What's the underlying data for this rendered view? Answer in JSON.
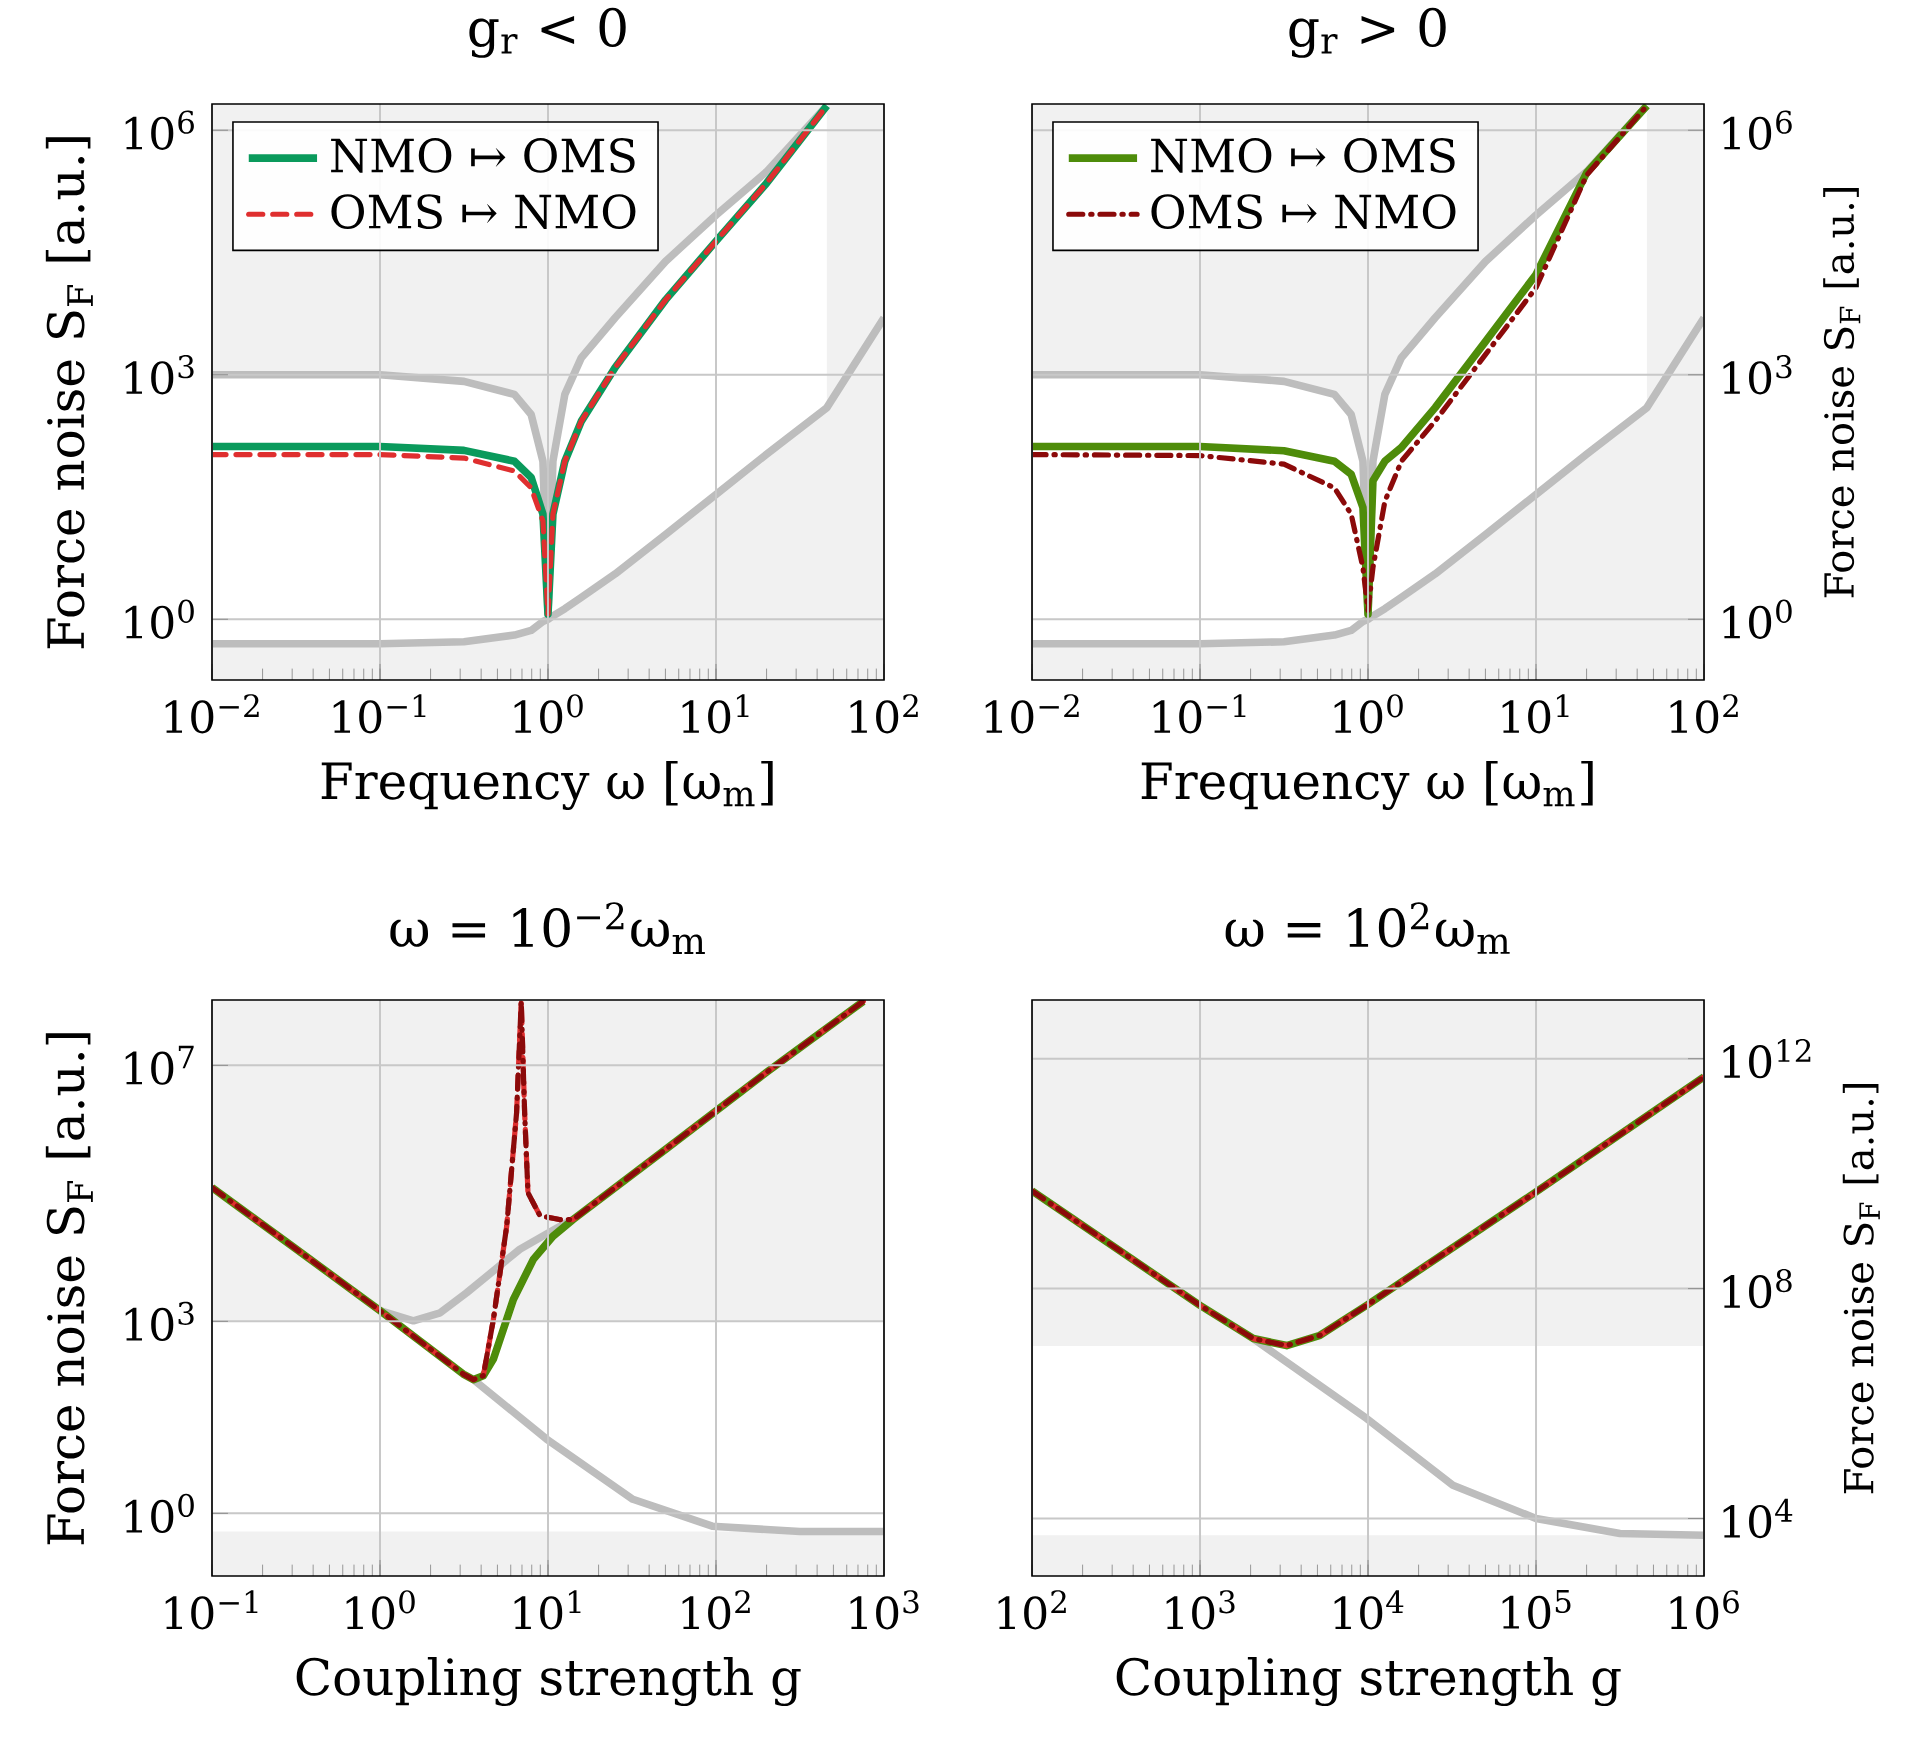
{
  "chart_data": [
    {
      "type": "line",
      "title": "g$_{r}$ < 0",
      "xlabel": "Frequency ω [ω$_{m}$]",
      "ylabel": "Force noise S$_{F}$ [a.u.]",
      "log": "xy",
      "grid": true,
      "legend": "top left",
      "xlim": [
        0.01,
        100
      ],
      "ylim": [
        0.18,
        2100000
      ],
      "xticks": [
        {
          "value": 0.01,
          "label": "10$^{−2}$"
        },
        {
          "value": 0.1,
          "label": "10$^{−1}$"
        },
        {
          "value": 1,
          "label": "10$^{0}$"
        },
        {
          "value": 10,
          "label": "10$^{1}$"
        },
        {
          "value": 100,
          "label": "10$^{2}$"
        }
      ],
      "yticks": [
        {
          "value": 1,
          "label": "10$^{0}$"
        },
        {
          "value": 1000,
          "label": "10$^{3}$"
        },
        {
          "value": 1000000,
          "label": "10$^{6}$"
        }
      ],
      "bands": [
        {
          "axis": "y",
          "from": 0.18,
          "to": 2100000,
          "color": "#f1f1f1"
        }
      ],
      "series": [
        {
          "color": "#bdbdbd",
          "x": [
            0.01,
            0.1,
            0.316,
            0.631,
            0.794,
            0.933,
            1,
            1.07,
            1.26,
            1.58,
            2.51,
            5.01,
            10,
            20,
            45.7
          ],
          "values": [
            1000,
            1000,
            830,
            575,
            325,
            87,
            1.16,
            87,
            575,
            1620,
            5000,
            24600,
            91000,
            310000,
            2000000
          ],
          "upper": [
            1000,
            1000,
            830,
            575,
            325,
            87,
            1.16,
            87,
            575,
            1620,
            5000,
            24600,
            91000,
            310000,
            2000000
          ],
          "lower": [
            0.5,
            0.5,
            0.53,
            0.64,
            0.73,
            0.94,
            1,
            1.1,
            1.35,
            1.86,
            3.6,
            11,
            34,
            106,
            395
          ]
        },
        {
          "color": "#bdbdbd",
          "x": [
            0.01,
            0.1,
            0.316,
            0.631,
            0.794,
            0.933,
            1,
            1.07,
            1.26,
            1.58,
            2.51,
            5.01,
            10,
            20,
            45.7,
            100
          ],
          "values": [
            0.5,
            0.5,
            0.53,
            0.64,
            0.73,
            0.94,
            1,
            1.1,
            1.35,
            1.86,
            3.6,
            11,
            34,
            106,
            395,
            5000
          ]
        },
        {
          "name": "NMO ↦ OMS",
          "color": "#0a9a5c",
          "line_style": "solid",
          "x": [
            0.01,
            0.1,
            0.316,
            0.631,
            0.794,
            0.933,
            1,
            1.07,
            1.26,
            1.58,
            2.51,
            5.01,
            10,
            20,
            45.7
          ],
          "values": [
            132,
            132,
            118,
            87,
            55,
            19.5,
            1.16,
            19.5,
            87,
            270,
            1230,
            8300,
            43600,
            224000,
            2000000
          ]
        },
        {
          "name": "OMS ↦ NMO",
          "color": "#df2f2f",
          "line_style": "dashed",
          "x": [
            0.01,
            0.1,
            0.316,
            0.631,
            0.794,
            0.933,
            1,
            1.07,
            1.26,
            1.58,
            2.51,
            5.01,
            10,
            20,
            45.7
          ],
          "values": [
            105,
            105,
            95,
            66,
            41,
            16,
            1.16,
            19.5,
            87,
            270,
            1230,
            8300,
            43600,
            224000,
            2000000
          ]
        }
      ]
    },
    {
      "type": "line",
      "title": "g$_{r}$ > 0",
      "xlabel": "Frequency ω [ω$_{m}$]",
      "ylabel": "Force noise S$_{F}$ [a.u.]",
      "log": "xy",
      "grid": true,
      "legend": "top left",
      "xlim": [
        0.01,
        100
      ],
      "ylim": [
        0.18,
        2100000
      ],
      "xticks": [
        {
          "value": 0.01,
          "label": "10$^{−2}$"
        },
        {
          "value": 0.1,
          "label": "10$^{−1}$"
        },
        {
          "value": 1,
          "label": "10$^{0}$"
        },
        {
          "value": 10,
          "label": "10$^{1}$"
        },
        {
          "value": 100,
          "label": "10$^{2}$"
        }
      ],
      "yticks": [
        {
          "value": 1,
          "label": "10$^{0}$"
        },
        {
          "value": 1000,
          "label": "10$^{3}$"
        },
        {
          "value": 1000000,
          "label": "10$^{6}$"
        }
      ],
      "bands": [
        {
          "axis": "y",
          "from": 0.18,
          "to": 2100000,
          "color": "#f1f1f1"
        }
      ],
      "series": [
        {
          "color": "#bdbdbd",
          "x": [
            0.01,
            0.1,
            0.316,
            0.631,
            0.794,
            0.933,
            1,
            1.07,
            1.26,
            1.58,
            2.51,
            5.01,
            10,
            20,
            45.7
          ],
          "values": [
            1000,
            1000,
            830,
            575,
            325,
            87,
            1.16,
            87,
            575,
            1620,
            5000,
            24600,
            91000,
            310000,
            2000000
          ],
          "upper": [
            1000,
            1000,
            830,
            575,
            325,
            87,
            1.16,
            87,
            575,
            1620,
            5000,
            24600,
            91000,
            310000,
            2000000
          ],
          "lower": [
            0.5,
            0.5,
            0.53,
            0.64,
            0.73,
            0.94,
            1,
            1.1,
            1.35,
            1.86,
            3.6,
            11,
            34,
            106,
            395
          ]
        },
        {
          "color": "#bdbdbd",
          "x": [
            0.01,
            0.1,
            0.316,
            0.631,
            0.794,
            0.933,
            1,
            1.07,
            1.26,
            1.58,
            2.51,
            5.01,
            10,
            20,
            45.7,
            100
          ],
          "values": [
            0.5,
            0.5,
            0.53,
            0.64,
            0.73,
            0.94,
            1,
            1.1,
            1.35,
            1.86,
            3.6,
            11,
            34,
            106,
            395,
            5000
          ]
        },
        {
          "name": "NMO ↦ OMS",
          "color": "#4e8c0a",
          "line_style": "solid",
          "x": [
            0.01,
            0.1,
            0.316,
            0.631,
            0.794,
            0.933,
            1,
            1.07,
            1.26,
            1.58,
            2.51,
            5.01,
            10,
            20,
            45.7
          ],
          "values": [
            132,
            132,
            117,
            87,
            60,
            23.5,
            1.16,
            50,
            87,
            128,
            395,
            2570,
            17000,
            300000,
            2000000
          ]
        },
        {
          "name": "OMS ↦ NMO",
          "color": "#8b0a0a",
          "line_style": "dashdotted",
          "x": [
            0.01,
            0.1,
            0.316,
            0.631,
            0.794,
            0.933,
            1,
            1.07,
            1.26,
            1.58,
            2.51,
            5.01,
            10,
            20,
            45.7
          ],
          "values": [
            105,
            102,
            80,
            41,
            19.5,
            4.3,
            1.28,
            4.3,
            28,
            87,
            270,
            1780,
            11700,
            280000,
            2000000
          ]
        }
      ]
    },
    {
      "type": "line",
      "title": "ω = 10$^{−2}$ω$_{m}$",
      "xlabel": "Coupling strength g",
      "ylabel": "Force noise S$_{F}$ [a.u.]",
      "log": "xy",
      "grid": true,
      "xlim": [
        0.1,
        1000
      ],
      "ylim": [
        0.105,
        105000000
      ],
      "xticks": [
        {
          "value": 0.1,
          "label": "10$^{−1}$"
        },
        {
          "value": 1,
          "label": "10$^{0}$"
        },
        {
          "value": 10,
          "label": "10$^{1}$"
        },
        {
          "value": 100,
          "label": "10$^{2}$"
        },
        {
          "value": 1000,
          "label": "10$^{3}$"
        }
      ],
      "yticks": [
        {
          "value": 1,
          "label": "10$^{0}$"
        },
        {
          "value": 1000,
          "label": "10$^{3}$"
        },
        {
          "value": 10000000,
          "label": "10$^{7}$"
        }
      ],
      "bands": [
        {
          "axis": "y",
          "from": 0.105,
          "to": 0.52,
          "color": "#f1f1f1"
        },
        {
          "axis": "y",
          "from": 1000,
          "to": 105000000,
          "color": "#f1f1f1"
        }
      ],
      "series": [
        {
          "color": "#bdbdbd",
          "x": [
            1,
            1.58,
            2.28,
            3.28,
            6.8,
            12.9
          ],
          "values": [
            1470,
            1020,
            1360,
            2800,
            13400,
            35000
          ]
        },
        {
          "color": "#bdbdbd",
          "x": [
            3.6,
            9.8,
            32,
            95,
            316,
            1000
          ],
          "values": [
            123,
            14.5,
            1.66,
            0.63,
            0.52,
            0.52
          ]
        },
        {
          "color": "#4e8c0a",
          "line_style": "solid",
          "x": [
            0.1,
            0.3,
            1,
            3.13,
            3.6,
            4.12,
            4.73,
            6.22,
            8.18,
            10.7,
            14.1,
            50.8,
            200,
            753
          ],
          "values": [
            123000,
            15000,
            1470,
            150,
            123,
            141,
            257,
            2200,
            9300,
            21400,
            39000,
            500000,
            7800000,
            100000000
          ]
        },
        {
          "color": "#df2f2f",
          "line_style": "dashed",
          "x": [
            0.1,
            0.3,
            1,
            3.13,
            3.6,
            4.12,
            4.73,
            5.68,
            6.5,
            6.93,
            7.26,
            7.6,
            8.96,
            11.7,
            14.1,
            50.8,
            200,
            753
          ],
          "values": [
            123000,
            15000,
            1470,
            150,
            123,
            141,
            1070,
            31000,
            1800000,
            100000000,
            1800000,
            102000,
            44700,
            39000,
            39000,
            500000,
            7800000,
            100000000
          ]
        },
        {
          "color": "#8b0a0a",
          "line_style": "dashdotted",
          "x": [
            0.1,
            0.3,
            1,
            3.13,
            3.6,
            4.12,
            4.73,
            5.68,
            6.5,
            6.93,
            7.26,
            7.6,
            8.96,
            11.7,
            14.1,
            50.8,
            200,
            753
          ],
          "values": [
            123000,
            15000,
            1470,
            150,
            123,
            141,
            1070,
            31000,
            1800000,
            100000000,
            1800000,
            102000,
            44700,
            39000,
            39000,
            500000,
            7800000,
            100000000
          ]
        }
      ]
    },
    {
      "type": "line",
      "title": "ω = 10$^{2}$ω$_{m}$",
      "xlabel": "Coupling strength g",
      "ylabel": "Force noise S$_{F}$ [a.u.]",
      "log": "xy",
      "grid": true,
      "xlim": [
        100,
        1000000
      ],
      "ylim": [
        1000,
        10500000000000
      ],
      "xticks": [
        {
          "value": 100,
          "label": "10$^{2}$"
        },
        {
          "value": 1000,
          "label": "10$^{3}$"
        },
        {
          "value": 10000,
          "label": "10$^{4}$"
        },
        {
          "value": 100000,
          "label": "10$^{5}$"
        },
        {
          "value": 1000000,
          "label": "10$^{6}$"
        }
      ],
      "yticks": [
        {
          "value": 10000,
          "label": "10$^{4}$"
        },
        {
          "value": 100000000,
          "label": "10$^{8}$"
        },
        {
          "value": 1000000000000,
          "label": "10$^{12}$"
        }
      ],
      "bands": [
        {
          "axis": "y",
          "from": 1000,
          "to": 5100,
          "color": "#f1f1f1"
        },
        {
          "axis": "y",
          "from": 10000000,
          "to": 10500000000000,
          "color": "#f1f1f1"
        }
      ],
      "series": [
        {
          "color": "#bdbdbd",
          "x": [
            2075,
            9800,
            32000,
            100000,
            316000,
            1000000
          ],
          "values": [
            13500000,
            550000,
            38000,
            10000,
            5500,
            5100
          ]
        },
        {
          "color": "#4e8c0a",
          "line_style": "solid",
          "x": [
            100,
            1000,
            2075,
            3280,
            5180,
            9800,
            100000,
            1000000
          ],
          "values": [
            5000000000,
            51000000,
            13500000,
            10200000,
            15400000,
            51000000,
            4800000000,
            480000000000
          ]
        },
        {
          "color": "#df2f2f",
          "line_style": "dashed",
          "x": [
            100,
            1000,
            2075,
            3280,
            5180,
            9800,
            100000,
            1000000
          ],
          "values": [
            5000000000,
            51000000,
            13500000,
            10200000,
            15400000,
            51000000,
            4800000000,
            480000000000
          ]
        },
        {
          "color": "#8b0a0a",
          "line_style": "dashdotted",
          "x": [
            100,
            1000,
            2075,
            3280,
            5180,
            9800,
            100000,
            1000000
          ],
          "values": [
            5000000000,
            51000000,
            13500000,
            10200000,
            15400000,
            51000000,
            4800000000,
            480000000000
          ]
        }
      ]
    }
  ]
}
